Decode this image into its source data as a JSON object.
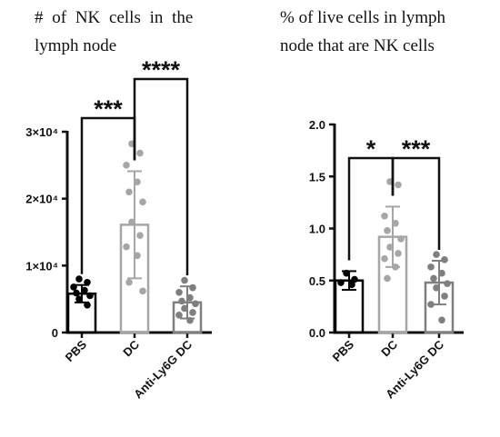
{
  "chart_data": [
    {
      "type": "bar",
      "title_line1": "# of NK cells in the",
      "title_line2": "lymph node",
      "categories": [
        "PBS",
        "DC",
        "Anti-Ly6G DC"
      ],
      "colors": [
        "#000000",
        "#a6a6a6",
        "#7f7f7f"
      ],
      "ylim": [
        0,
        30000
      ],
      "yticks": [
        0,
        10000,
        20000,
        30000
      ],
      "ytick_labels": [
        "0",
        "1×10⁴",
        "2×10⁴",
        "3×10⁴"
      ],
      "means": [
        5800,
        16100,
        4500
      ],
      "errors": [
        1300,
        8000,
        2400
      ],
      "points": [
        [
          8000,
          7500,
          6800,
          6300,
          5900,
          5500,
          5000,
          4100
        ],
        [
          28200,
          26800,
          25000,
          22500,
          21000,
          19500,
          16500,
          14500,
          12800,
          11500,
          7500,
          6200
        ],
        [
          7800,
          6700,
          6000,
          5200,
          4700,
          4300,
          3600,
          3000,
          2600,
          1800
        ]
      ],
      "significance": [
        {
          "from": 0,
          "to": 1,
          "label": "***"
        },
        {
          "from": 1,
          "to": 2,
          "label": "****"
        }
      ]
    },
    {
      "type": "bar",
      "title_line1": "% of live cells in lymph",
      "title_line2": "node that are NK cells",
      "categories": [
        "PBS",
        "DC",
        "Anti-Ly6G DC"
      ],
      "colors": [
        "#000000",
        "#a6a6a6",
        "#7f7f7f"
      ],
      "ylim": [
        0,
        2.0
      ],
      "yticks": [
        0,
        0.5,
        1.0,
        1.5,
        2.0
      ],
      "ytick_labels": [
        "0.0",
        "0.5",
        "1.0",
        "1.5",
        "2.0"
      ],
      "means": [
        0.5,
        0.92,
        0.48
      ],
      "errors": [
        0.09,
        0.29,
        0.21
      ],
      "points": [
        [
          0.57,
          0.51,
          0.48,
          0.46
        ],
        [
          1.45,
          1.42,
          1.12,
          1.05,
          0.98,
          0.9,
          0.82,
          0.76,
          0.71,
          0.63,
          0.52
        ],
        [
          0.75,
          0.7,
          0.63,
          0.57,
          0.52,
          0.47,
          0.43,
          0.35,
          0.27,
          0.12
        ]
      ],
      "significance": [
        {
          "from": 0,
          "to": 1,
          "label": "*"
        },
        {
          "from": 1,
          "to": 2,
          "label": "***"
        }
      ]
    }
  ]
}
